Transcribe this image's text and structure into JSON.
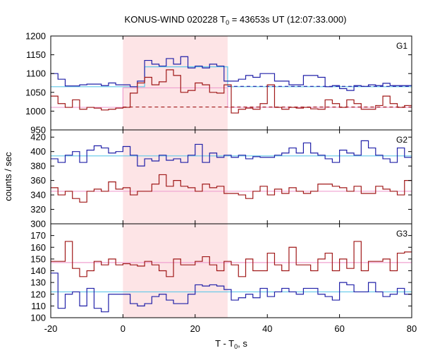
{
  "chart_data": {
    "type": "line",
    "title_main": "KONUS-WIND 020228 T",
    "title_sub": "0",
    "title_rest": " = 43653s UT (12:07:33.000)",
    "xlabel_main": "T - T",
    "xlabel_sub": "0",
    "xlabel_rest": ", s",
    "ylabel": "counts / sec",
    "xlim": [
      -20,
      80
    ],
    "x_ticks": [
      -20,
      0,
      20,
      40,
      60,
      80
    ],
    "highlight_interval": [
      0,
      29
    ],
    "colors": {
      "blue": "#2020a8",
      "red": "#a01818",
      "light_blue": "#60c8e8",
      "pink": "#f0a0d0",
      "highlight": "#fde4e6"
    },
    "panels": [
      {
        "label": "G1",
        "ylim": [
          950,
          1200
        ],
        "y_ticks": [
          950,
          1000,
          1050,
          1100,
          1150,
          1200
        ],
        "bin_edges": [
          -20,
          -18,
          -16,
          -14,
          -12,
          -10,
          -8,
          -6,
          -4,
          -2,
          0,
          2,
          4,
          6,
          8,
          10,
          12,
          14,
          16,
          18,
          20,
          22,
          24,
          26,
          28,
          30,
          32,
          34,
          36,
          38,
          40,
          42,
          44,
          46,
          48,
          50,
          52,
          54,
          56,
          58,
          60,
          62,
          64,
          66,
          68,
          70,
          72,
          74,
          76,
          78,
          80
        ],
        "series": [
          {
            "color": "blue",
            "values": [
              1100,
              1085,
              1067,
              1067,
              1070,
              1072,
              1072,
              1068,
              1075,
              1070,
              1070,
              1065,
              1080,
              1135,
              1125,
              1120,
              1140,
              1125,
              1145,
              1115,
              1120,
              1115,
              1125,
              1120,
              1080,
              1080,
              1085,
              1095,
              1090,
              1100,
              1100,
              1080,
              1080,
              1070,
              1070,
              1095,
              1095,
              1090,
              1065,
              1068,
              1060,
              1055,
              1068,
              1066,
              1070,
              1068,
              1074,
              1068,
              1068,
              1068
            ]
          },
          {
            "color": "red",
            "values": [
              1040,
              1020,
              1010,
              1030,
              1005,
              1010,
              1008,
              1003,
              1005,
              1008,
              1010,
              1048,
              1075,
              1090,
              1070,
              1078,
              1110,
              1095,
              1050,
              1055,
              1075,
              1070,
              1050,
              1048,
              1070,
              995,
              1005,
              1008,
              1005,
              1020,
              1070,
              1010,
              1005,
              1010,
              1008,
              1010,
              1006,
              1005,
              1030,
              1020,
              1010,
              1030,
              1020,
              1005,
              1005,
              1015,
              1040,
              1020,
              1010,
              1015
            ]
          }
        ],
        "step_levels": [
          {
            "color": "light_blue",
            "steps": [
              {
                "x": [
                  -20,
                  0
                ],
                "y": 1065
              },
              {
                "x": [
                  0,
                  6
                ],
                "y": 1065
              },
              {
                "x": [
                  6,
                  29
                ],
                "y": 1118
              },
              {
                "x": [
                  29,
                  80
                ],
                "y": 1065
              }
            ]
          },
          {
            "color": "pink",
            "steps": [
              {
                "x": [
                  -20,
                  0
                ],
                "y": 1010
              },
              {
                "x": [
                  0,
                  29
                ],
                "y": 1062
              },
              {
                "x": [
                  29,
                  80
                ],
                "y": 1010
              }
            ]
          }
        ],
        "background_dashed": [
          {
            "color": "blue",
            "x": [
              29,
              80
            ],
            "y": 1066
          },
          {
            "color": "red",
            "x": [
              0,
              80
            ],
            "y": 1011
          }
        ]
      },
      {
        "label": "G2",
        "ylim": [
          300,
          430
        ],
        "y_ticks": [
          300,
          320,
          340,
          360,
          380,
          400,
          420
        ],
        "bin_edges": [
          -20,
          -18,
          -16,
          -14,
          -12,
          -10,
          -8,
          -6,
          -4,
          -2,
          0,
          2,
          4,
          6,
          8,
          10,
          12,
          14,
          16,
          18,
          20,
          22,
          24,
          26,
          28,
          30,
          32,
          34,
          36,
          38,
          40,
          42,
          44,
          46,
          48,
          50,
          52,
          54,
          56,
          58,
          60,
          62,
          64,
          66,
          68,
          70,
          72,
          74,
          76,
          78,
          80
        ],
        "series": [
          {
            "color": "blue",
            "values": [
              390,
              385,
              395,
              400,
              385,
              402,
              408,
              405,
              398,
              400,
              407,
              395,
              380,
              390,
              387,
              395,
              388,
              390,
              385,
              395,
              410,
              385,
              398,
              392,
              395,
              392,
              395,
              390,
              393,
              392,
              392,
              395,
              398,
              405,
              398,
              412,
              398,
              395,
              390,
              385,
              402,
              398,
              395,
              415,
              405,
              395,
              390,
              385,
              405,
              392
            ]
          },
          {
            "color": "red",
            "values": [
              350,
              340,
              345,
              335,
              330,
              345,
              348,
              345,
              358,
              348,
              350,
              340,
              345,
              345,
              355,
              368,
              352,
              360,
              352,
              350,
              345,
              355,
              350,
              352,
              342,
              342,
              340,
              335,
              345,
              352,
              340,
              348,
              342,
              350,
              345,
              342,
              345,
              355,
              355,
              352,
              350,
              345,
              352,
              342,
              342,
              352,
              348,
              345,
              340,
              360
            ]
          }
        ],
        "step_levels": [
          {
            "color": "light_blue",
            "steps": [
              {
                "x": [
                  -20,
                  80
                ],
                "y": 394
              }
            ]
          },
          {
            "color": "pink",
            "steps": [
              {
                "x": [
                  -20,
                  80
                ],
                "y": 345
              }
            ]
          }
        ],
        "background_dashed": []
      },
      {
        "label": "G3",
        "ylim": [
          100,
          180
        ],
        "y_ticks": [
          100,
          110,
          120,
          130,
          140,
          150,
          160,
          170
        ],
        "bin_edges": [
          -20,
          -18,
          -16,
          -14,
          -12,
          -10,
          -8,
          -6,
          -4,
          -2,
          0,
          2,
          4,
          6,
          8,
          10,
          12,
          14,
          16,
          18,
          20,
          22,
          24,
          26,
          28,
          30,
          32,
          34,
          36,
          38,
          40,
          42,
          44,
          46,
          48,
          50,
          52,
          54,
          56,
          58,
          60,
          62,
          64,
          66,
          68,
          70,
          72,
          74,
          76,
          78,
          80
        ],
        "series": [
          {
            "color": "blue",
            "values": [
              138,
              108,
              120,
              122,
              110,
              125,
              108,
              105,
              120,
              120,
              120,
              112,
              110,
              112,
              118,
              120,
              115,
              112,
              112,
              120,
              128,
              127,
              128,
              127,
              124,
              115,
              117,
              120,
              117,
              125,
              118,
              122,
              125,
              122,
              120,
              125,
              125,
              120,
              118,
              115,
              130,
              128,
              122,
              122,
              130,
              122,
              118,
              120,
              125,
              120
            ]
          },
          {
            "color": "red",
            "values": [
              148,
              148,
              165,
              142,
              135,
              140,
              148,
              145,
              150,
              145,
              146,
              145,
              144,
              148,
              145,
              140,
              135,
              150,
              145,
              145,
              148,
              152,
              145,
              140,
              148,
              145,
              135,
              150,
              140,
              140,
              155,
              145,
              140,
              160,
              145,
              145,
              140,
              150,
              155,
              140,
              150,
              142,
              165,
              140,
              148,
              148,
              150,
              140,
              155,
              156
            ]
          }
        ],
        "step_levels": [
          {
            "color": "light_blue",
            "steps": [
              {
                "x": [
                  -20,
                  80
                ],
                "y": 122
              }
            ]
          },
          {
            "color": "pink",
            "steps": [
              {
                "x": [
                  -20,
                  80
                ],
                "y": 147
              }
            ]
          }
        ],
        "background_dashed": []
      }
    ]
  }
}
